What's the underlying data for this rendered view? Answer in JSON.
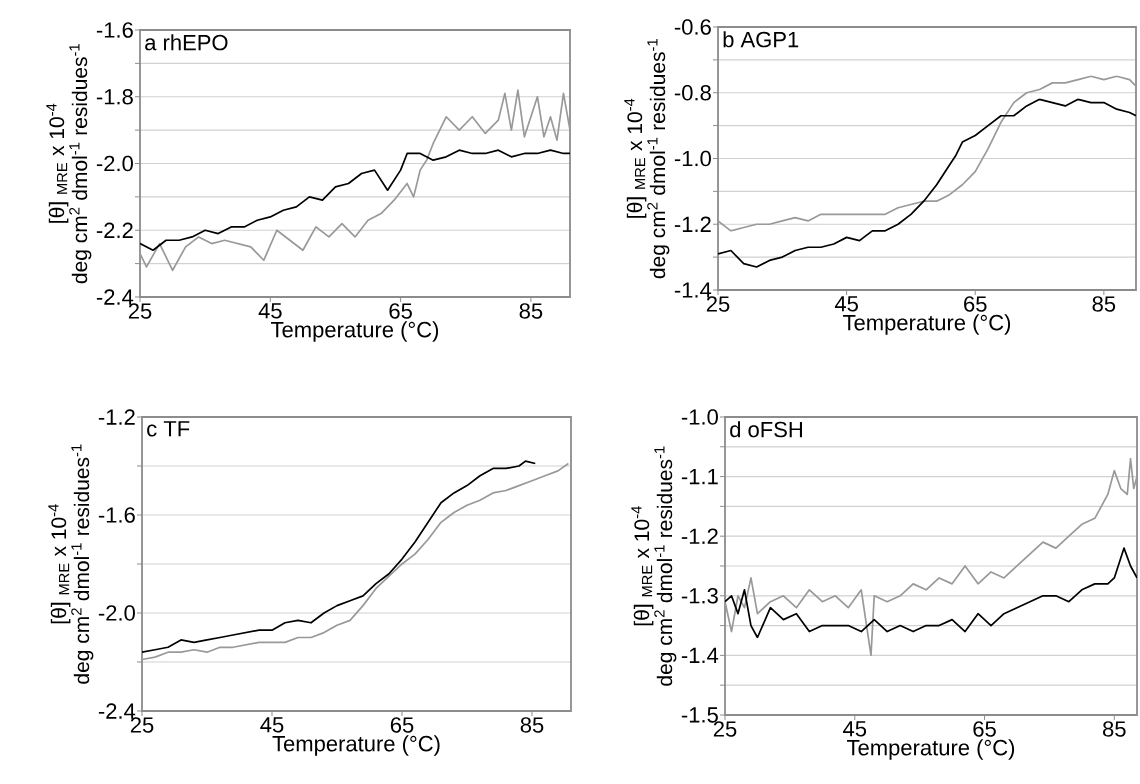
{
  "chart_data": [
    {
      "type": "line",
      "title": "a rhEPO",
      "xlabel": "Temperature (°C)",
      "ylabel": "[θ] $_{MRE}$ x 10$^{-4}$\ndeg cm$^{2}$ dmol$^{-1}$ residues$^{-1}$",
      "xlim": [
        25,
        91
      ],
      "ylim": [
        -2.4,
        -1.6
      ],
      "xticks": [
        25,
        45,
        65,
        85
      ],
      "yticks": [
        -2.4,
        {
          "value": -2.3,
          "label": null
        },
        -2.2,
        {
          "value": -2.1,
          "label": null
        },
        {
          "value": -2.0,
          "label": "-2.0"
        },
        {
          "value": -1.9,
          "label": null
        },
        -1.8,
        {
          "value": -1.7,
          "label": null
        },
        -1.6
      ],
      "grid": "y",
      "series": [
        {
          "color": "#999999",
          "x": [
            25,
            26,
            28,
            30,
            32,
            34,
            36,
            38,
            40,
            42,
            44,
            46,
            48,
            50,
            52,
            54,
            56,
            58,
            60,
            62,
            64,
            66,
            67,
            68,
            69,
            70,
            71,
            72,
            74,
            76,
            78,
            80,
            81,
            82,
            83,
            84,
            86,
            87,
            88,
            89,
            90,
            91
          ],
          "values": [
            -2.27,
            -2.31,
            -2.24,
            -2.32,
            -2.25,
            -2.22,
            -2.24,
            -2.23,
            -2.24,
            -2.25,
            -2.29,
            -2.2,
            -2.23,
            -2.26,
            -2.19,
            -2.22,
            -2.18,
            -2.22,
            -2.17,
            -2.15,
            -2.11,
            -2.06,
            -2.1,
            -2.02,
            -1.99,
            -1.94,
            -1.9,
            -1.86,
            -1.9,
            -1.86,
            -1.91,
            -1.87,
            -1.79,
            -1.9,
            -1.78,
            -1.92,
            -1.8,
            -1.92,
            -1.86,
            -1.93,
            -1.79,
            -1.9
          ]
        },
        {
          "color": "#000000",
          "x": [
            25,
            27,
            29,
            31,
            33,
            35,
            37,
            39,
            41,
            43,
            45,
            47,
            49,
            51,
            53,
            55,
            57,
            59,
            61,
            63,
            65,
            66,
            68,
            70,
            72,
            74,
            76,
            78,
            80,
            82,
            84,
            86,
            88,
            90,
            91
          ],
          "values": [
            -2.24,
            -2.26,
            -2.23,
            -2.23,
            -2.22,
            -2.2,
            -2.21,
            -2.19,
            -2.19,
            -2.17,
            -2.16,
            -2.14,
            -2.13,
            -2.1,
            -2.11,
            -2.07,
            -2.06,
            -2.03,
            -2.02,
            -2.08,
            -2.02,
            -1.97,
            -1.97,
            -1.99,
            -1.98,
            -1.96,
            -1.97,
            -1.97,
            -1.96,
            -1.98,
            -1.97,
            -1.97,
            -1.96,
            -1.97,
            -1.97
          ]
        }
      ]
    },
    {
      "type": "line",
      "title": "b AGP1",
      "xlabel": "Temperature (°C)",
      "ylabel": "[θ] $_{MRE}$ x 10$^{-4}$\ndeg cm$^{2}$ dmol$^{-1}$ residues$^{-1}$",
      "xlim": [
        25,
        90
      ],
      "ylim": [
        -1.4,
        -0.6
      ],
      "xticks": [
        25,
        45,
        65,
        85
      ],
      "yticks": [
        -1.4,
        {
          "value": -1.3,
          "label": null
        },
        -1.2,
        {
          "value": -1.1,
          "label": null
        },
        {
          "value": -1.0,
          "label": "-1.0"
        },
        {
          "value": -0.9,
          "label": null
        },
        -0.8,
        {
          "value": -0.7,
          "label": null
        },
        -0.6
      ],
      "grid": "y",
      "series": [
        {
          "color": "#999999",
          "x": [
            25,
            27,
            29,
            31,
            33,
            35,
            37,
            39,
            41,
            43,
            45,
            47,
            49,
            51,
            53,
            55,
            57,
            59,
            61,
            63,
            65,
            67,
            69,
            71,
            73,
            75,
            77,
            79,
            81,
            83,
            85,
            87,
            89,
            90
          ],
          "values": [
            -1.19,
            -1.22,
            -1.21,
            -1.2,
            -1.2,
            -1.19,
            -1.18,
            -1.19,
            -1.17,
            -1.17,
            -1.17,
            -1.17,
            -1.17,
            -1.17,
            -1.15,
            -1.14,
            -1.13,
            -1.13,
            -1.11,
            -1.08,
            -1.04,
            -0.97,
            -0.89,
            -0.83,
            -0.8,
            -0.79,
            -0.77,
            -0.77,
            -0.76,
            -0.75,
            -0.76,
            -0.75,
            -0.76,
            -0.78
          ]
        },
        {
          "color": "#000000",
          "x": [
            25,
            27,
            29,
            31,
            33,
            35,
            37,
            39,
            41,
            43,
            45,
            47,
            49,
            51,
            53,
            55,
            57,
            59,
            61,
            62,
            63,
            65,
            67,
            69,
            71,
            73,
            75,
            77,
            79,
            81,
            83,
            85,
            87,
            89,
            90
          ],
          "values": [
            -1.29,
            -1.28,
            -1.32,
            -1.33,
            -1.31,
            -1.3,
            -1.28,
            -1.27,
            -1.27,
            -1.26,
            -1.24,
            -1.25,
            -1.22,
            -1.22,
            -1.2,
            -1.17,
            -1.13,
            -1.08,
            -1.02,
            -0.99,
            -0.95,
            -0.93,
            -0.9,
            -0.87,
            -0.87,
            -0.84,
            -0.82,
            -0.83,
            -0.84,
            -0.82,
            -0.83,
            -0.83,
            -0.85,
            -0.86,
            -0.87
          ]
        }
      ]
    },
    {
      "type": "line",
      "title": "c TF",
      "xlabel": "Temperature (°C)",
      "ylabel": "[θ] $_{MRE}$ x 10$^{-4}$\ndeg cm$^{2}$ dmol$^{-1}$ residues$^{-1}$",
      "xlim": [
        25,
        91
      ],
      "ylim": [
        -2.4,
        -1.2
      ],
      "xticks": [
        25,
        45,
        65,
        85
      ],
      "yticks": [
        -2.4,
        {
          "value": -2.2,
          "label": null
        },
        {
          "value": -2.0,
          "label": "-2.0"
        },
        {
          "value": -1.8,
          "label": null
        },
        -1.6,
        {
          "value": -1.4,
          "label": null
        },
        -1.2
      ],
      "grid": "y",
      "series": [
        {
          "color": "#999999",
          "x": [
            25,
            27,
            29,
            31,
            33,
            35,
            37,
            39,
            41,
            43,
            45,
            47,
            49,
            51,
            53,
            55,
            57,
            59,
            61,
            63,
            65,
            67,
            69,
            71,
            73,
            75,
            77,
            79,
            81,
            83,
            85,
            87,
            89,
            90.6
          ],
          "values": [
            -2.19,
            -2.18,
            -2.16,
            -2.16,
            -2.15,
            -2.16,
            -2.14,
            -2.14,
            -2.13,
            -2.12,
            -2.12,
            -2.12,
            -2.1,
            -2.1,
            -2.08,
            -2.05,
            -2.03,
            -1.97,
            -1.9,
            -1.85,
            -1.8,
            -1.76,
            -1.7,
            -1.63,
            -1.59,
            -1.56,
            -1.54,
            -1.51,
            -1.5,
            -1.48,
            -1.46,
            -1.44,
            -1.42,
            -1.39
          ]
        },
        {
          "color": "#000000",
          "x": [
            25,
            27,
            29,
            31,
            33,
            35,
            37,
            39,
            41,
            43,
            45,
            47,
            49,
            51,
            53,
            55,
            57,
            59,
            61,
            63,
            65,
            67,
            69,
            71,
            73,
            75,
            77,
            79,
            81,
            83,
            84,
            85.5
          ],
          "values": [
            -2.16,
            -2.15,
            -2.14,
            -2.11,
            -2.12,
            -2.11,
            -2.1,
            -2.09,
            -2.08,
            -2.07,
            -2.07,
            -2.04,
            -2.03,
            -2.04,
            -2.0,
            -1.97,
            -1.95,
            -1.93,
            -1.88,
            -1.84,
            -1.78,
            -1.71,
            -1.63,
            -1.55,
            -1.51,
            -1.48,
            -1.44,
            -1.41,
            -1.41,
            -1.4,
            -1.38,
            -1.39
          ]
        }
      ]
    },
    {
      "type": "line",
      "title": "d oFSH",
      "xlabel": "Temperature (°C)",
      "ylabel": "[θ] $_{MRE}$ x 10$^{-4}$\ndeg cm$^{2}$ dmol$^{-1}$ residues$^{-1}$",
      "xlim": [
        25,
        88.5
      ],
      "ylim": [
        -1.5,
        -1.0
      ],
      "xticks": [
        25,
        45,
        65,
        85
      ],
      "yticks": [
        -1.5,
        {
          "value": -1.45,
          "label": null
        },
        -1.4,
        {
          "value": -1.35,
          "label": null
        },
        -1.3,
        {
          "value": -1.25,
          "label": null
        },
        -1.2,
        {
          "value": -1.15,
          "label": null
        },
        -1.1,
        {
          "value": -1.05,
          "label": null
        },
        {
          "value": -1.0,
          "label": "-1.0"
        }
      ],
      "grid": "y",
      "series": [
        {
          "color": "#999999",
          "x": [
            25,
            26,
            27,
            28,
            29,
            30,
            32,
            34,
            36,
            38,
            40,
            42,
            44,
            46,
            47.5,
            48,
            50,
            52,
            54,
            56,
            58,
            60,
            62,
            64,
            66,
            68,
            70,
            72,
            74,
            76,
            78,
            80,
            82,
            84,
            85,
            86,
            87,
            87.5,
            88,
            88.5
          ],
          "values": [
            -1.31,
            -1.36,
            -1.3,
            -1.32,
            -1.27,
            -1.33,
            -1.31,
            -1.3,
            -1.32,
            -1.29,
            -1.31,
            -1.3,
            -1.32,
            -1.29,
            -1.4,
            -1.3,
            -1.31,
            -1.3,
            -1.28,
            -1.29,
            -1.27,
            -1.28,
            -1.25,
            -1.28,
            -1.26,
            -1.27,
            -1.25,
            -1.23,
            -1.21,
            -1.22,
            -1.2,
            -1.18,
            -1.17,
            -1.13,
            -1.09,
            -1.12,
            -1.13,
            -1.07,
            -1.12,
            -1.1
          ]
        },
        {
          "color": "#000000",
          "x": [
            25,
            26,
            27,
            28,
            29,
            30,
            32,
            34,
            36,
            38,
            40,
            42,
            44,
            46,
            48,
            50,
            52,
            54,
            56,
            58,
            60,
            62,
            64,
            66,
            68,
            70,
            72,
            74,
            76,
            78,
            80,
            82,
            84,
            85,
            86.5,
            87.5,
            88.5
          ],
          "values": [
            -1.31,
            -1.3,
            -1.33,
            -1.29,
            -1.35,
            -1.37,
            -1.32,
            -1.34,
            -1.33,
            -1.36,
            -1.35,
            -1.35,
            -1.35,
            -1.36,
            -1.34,
            -1.36,
            -1.35,
            -1.36,
            -1.35,
            -1.35,
            -1.34,
            -1.36,
            -1.33,
            -1.35,
            -1.33,
            -1.32,
            -1.31,
            -1.3,
            -1.3,
            -1.31,
            -1.29,
            -1.28,
            -1.28,
            -1.27,
            -1.22,
            -1.25,
            -1.27
          ]
        }
      ]
    }
  ]
}
